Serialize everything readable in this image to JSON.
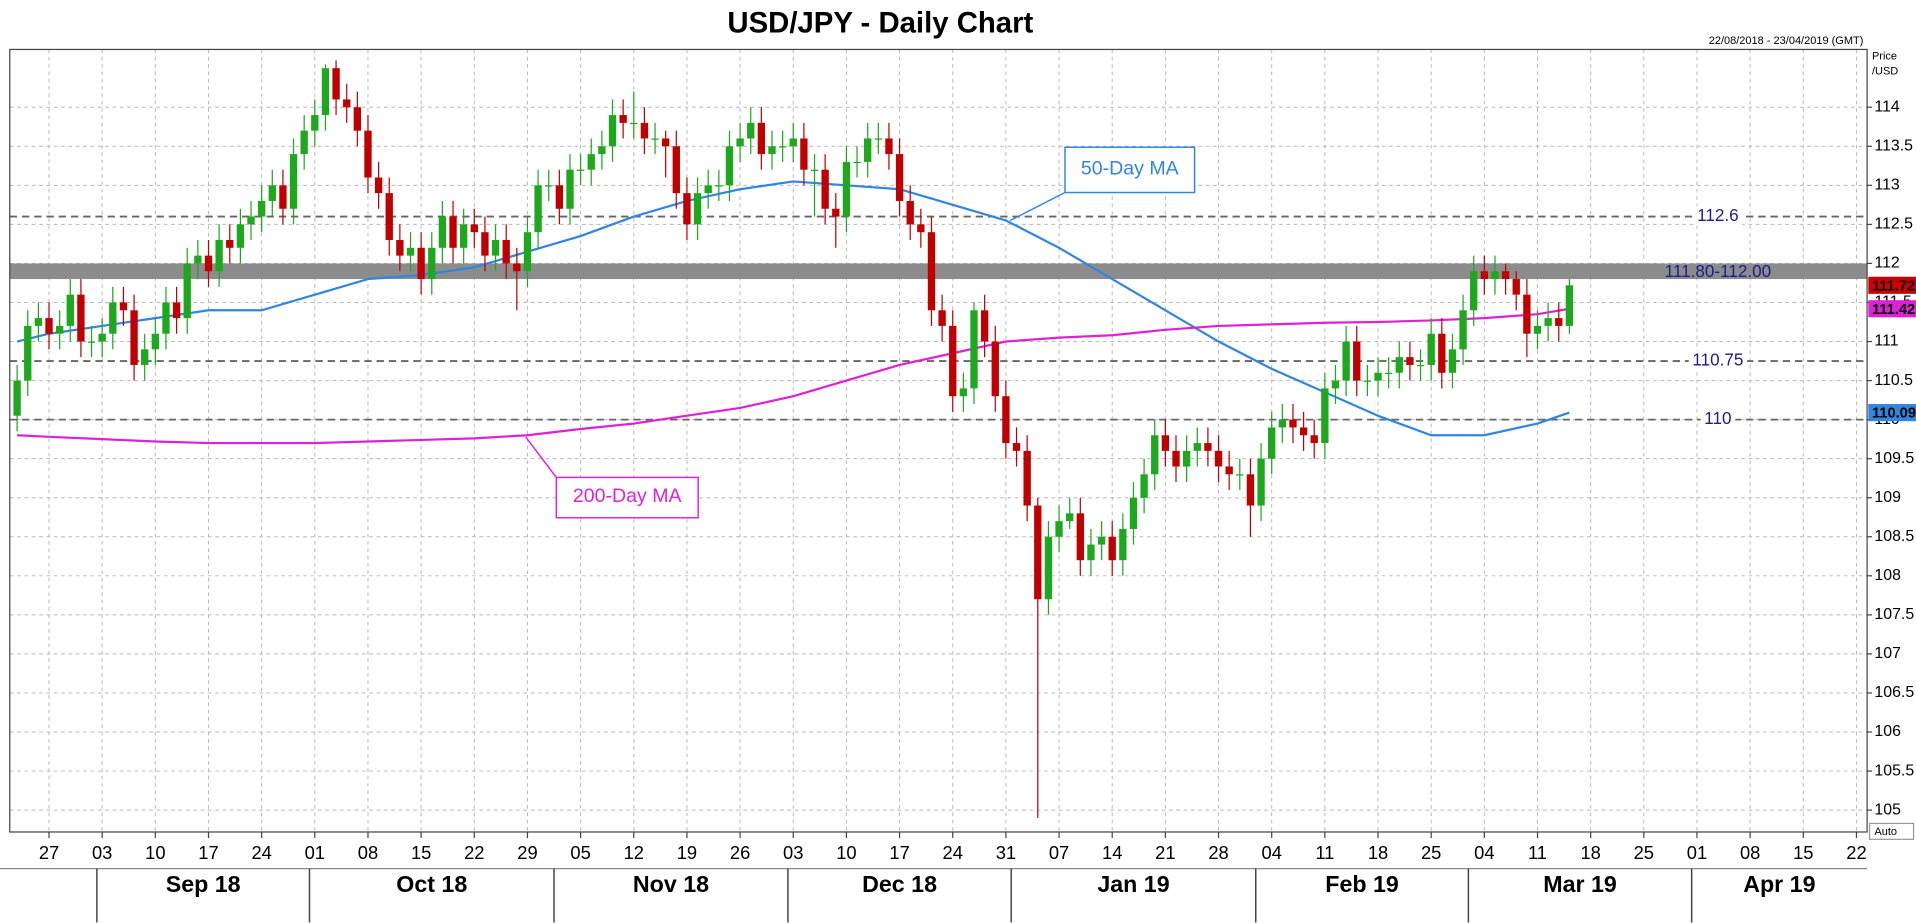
{
  "chart_data": {
    "type": "candlestick",
    "title": "USD/JPY - Daily Chart",
    "date_range": "22/08/2018 - 23/04/2019 (GMT)",
    "price_label": [
      "Price",
      "/USD"
    ],
    "auto_label": "Auto",
    "up_color": "#1ea81e",
    "down_color": "#c00000",
    "xlim": [
      "2018-08-22",
      "2019-04-23"
    ],
    "ylim": [
      104.72,
      114.74
    ],
    "yticks": [
      105,
      105.5,
      106,
      106.5,
      107,
      107.5,
      108,
      108.5,
      109,
      109.5,
      110,
      110.5,
      111,
      111.5,
      112,
      112.5,
      113,
      113.5,
      114
    ],
    "grid": true,
    "xticks": [
      {
        "value": "2018-08-27",
        "label": "27"
      },
      {
        "value": "2018-09-03",
        "label": "03"
      },
      {
        "value": "2018-09-10",
        "label": "10"
      },
      {
        "value": "2018-09-17",
        "label": "17"
      },
      {
        "value": "2018-09-24",
        "label": "24"
      },
      {
        "value": "2018-10-01",
        "label": "01"
      },
      {
        "value": "2018-10-08",
        "label": "08"
      },
      {
        "value": "2018-10-15",
        "label": "15"
      },
      {
        "value": "2018-10-22",
        "label": "22"
      },
      {
        "value": "2018-10-29",
        "label": "29"
      },
      {
        "value": "2018-11-05",
        "label": "05"
      },
      {
        "value": "2018-11-12",
        "label": "12"
      },
      {
        "value": "2018-11-19",
        "label": "19"
      },
      {
        "value": "2018-11-26",
        "label": "26"
      },
      {
        "value": "2018-12-03",
        "label": "03"
      },
      {
        "value": "2018-12-10",
        "label": "10"
      },
      {
        "value": "2018-12-17",
        "label": "17"
      },
      {
        "value": "2018-12-24",
        "label": "24"
      },
      {
        "value": "2018-12-31",
        "label": "31"
      },
      {
        "value": "2019-01-07",
        "label": "07"
      },
      {
        "value": "2019-01-14",
        "label": "14"
      },
      {
        "value": "2019-01-21",
        "label": "21"
      },
      {
        "value": "2019-01-28",
        "label": "28"
      },
      {
        "value": "2019-02-04",
        "label": "04"
      },
      {
        "value": "2019-02-11",
        "label": "11"
      },
      {
        "value": "2019-02-18",
        "label": "18"
      },
      {
        "value": "2019-02-25",
        "label": "25"
      },
      {
        "value": "2019-03-04",
        "label": "04"
      },
      {
        "value": "2019-03-11",
        "label": "11"
      },
      {
        "value": "2019-03-18",
        "label": "18"
      },
      {
        "value": "2019-03-25",
        "label": "25"
      },
      {
        "value": "2019-04-01",
        "label": "01"
      },
      {
        "value": "2019-04-08",
        "label": "08"
      },
      {
        "value": "2019-04-15",
        "label": "15"
      },
      {
        "value": "2019-04-22",
        "label": "22"
      }
    ],
    "months": [
      {
        "value": "2018-09",
        "label": "Sep 18"
      },
      {
        "value": "2018-10",
        "label": "Oct 18"
      },
      {
        "value": "2018-11",
        "label": "Nov 18"
      },
      {
        "value": "2018-12",
        "label": "Dec 18"
      },
      {
        "value": "2019-01",
        "label": "Jan 19"
      },
      {
        "value": "2019-02",
        "label": "Feb 19"
      },
      {
        "value": "2019-03",
        "label": "Mar 19"
      },
      {
        "value": "2019-04",
        "label": "Apr 19"
      }
    ],
    "x": [
      "2018-08-22",
      "2018-08-23",
      "2018-08-24",
      "2018-08-27",
      "2018-08-28",
      "2018-08-29",
      "2018-08-30",
      "2018-08-31",
      "2018-09-03",
      "2018-09-04",
      "2018-09-05",
      "2018-09-06",
      "2018-09-07",
      "2018-09-10",
      "2018-09-11",
      "2018-09-12",
      "2018-09-13",
      "2018-09-14",
      "2018-09-17",
      "2018-09-18",
      "2018-09-19",
      "2018-09-20",
      "2018-09-21",
      "2018-09-24",
      "2018-09-25",
      "2018-09-26",
      "2018-09-27",
      "2018-09-28",
      "2018-10-01",
      "2018-10-02",
      "2018-10-03",
      "2018-10-04",
      "2018-10-05",
      "2018-10-08",
      "2018-10-09",
      "2018-10-10",
      "2018-10-11",
      "2018-10-12",
      "2018-10-15",
      "2018-10-16",
      "2018-10-17",
      "2018-10-18",
      "2018-10-19",
      "2018-10-22",
      "2018-10-23",
      "2018-10-24",
      "2018-10-25",
      "2018-10-26",
      "2018-10-29",
      "2018-10-30",
      "2018-10-31",
      "2018-11-01",
      "2018-11-02",
      "2018-11-05",
      "2018-11-06",
      "2018-11-07",
      "2018-11-08",
      "2018-11-09",
      "2018-11-12",
      "2018-11-13",
      "2018-11-14",
      "2018-11-15",
      "2018-11-16",
      "2018-11-19",
      "2018-11-20",
      "2018-11-21",
      "2018-11-22",
      "2018-11-23",
      "2018-11-26",
      "2018-11-27",
      "2018-11-28",
      "2018-11-29",
      "2018-11-30",
      "2018-12-03",
      "2018-12-04",
      "2018-12-05",
      "2018-12-06",
      "2018-12-07",
      "2018-12-10",
      "2018-12-11",
      "2018-12-12",
      "2018-12-13",
      "2018-12-14",
      "2018-12-17",
      "2018-12-18",
      "2018-12-19",
      "2018-12-20",
      "2018-12-21",
      "2018-12-24",
      "2018-12-25",
      "2018-12-26",
      "2018-12-27",
      "2018-12-28",
      "2018-12-31",
      "2019-01-01",
      "2019-01-02",
      "2019-01-03",
      "2019-01-04",
      "2019-01-07",
      "2019-01-08",
      "2019-01-09",
      "2019-01-10",
      "2019-01-11",
      "2019-01-14",
      "2019-01-15",
      "2019-01-16",
      "2019-01-17",
      "2019-01-18",
      "2019-01-21",
      "2019-01-22",
      "2019-01-23",
      "2019-01-24",
      "2019-01-25",
      "2019-01-28",
      "2019-01-29",
      "2019-01-30",
      "2019-01-31",
      "2019-02-01",
      "2019-02-04",
      "2019-02-05",
      "2019-02-06",
      "2019-02-07",
      "2019-02-08",
      "2019-02-11",
      "2019-02-12",
      "2019-02-13",
      "2019-02-14",
      "2019-02-15",
      "2019-02-18",
      "2019-02-19",
      "2019-02-20",
      "2019-02-21",
      "2019-02-22",
      "2019-02-25",
      "2019-02-26",
      "2019-02-27",
      "2019-02-28",
      "2019-03-01",
      "2019-03-04",
      "2019-03-05",
      "2019-03-06",
      "2019-03-07",
      "2019-03-08",
      "2019-03-11",
      "2019-03-12",
      "2019-03-13",
      "2019-03-14"
    ],
    "open": [
      110.05,
      110.5,
      111.2,
      111.3,
      111.1,
      111.2,
      111.6,
      111.0,
      111.0,
      111.1,
      111.5,
      111.4,
      110.7,
      110.9,
      111.1,
      111.5,
      111.3,
      112.0,
      112.1,
      111.9,
      112.3,
      112.2,
      112.5,
      112.6,
      112.8,
      113.0,
      112.7,
      113.4,
      113.7,
      113.9,
      114.5,
      114.1,
      114.0,
      113.7,
      113.1,
      112.9,
      112.3,
      112.1,
      112.2,
      111.8,
      112.2,
      112.6,
      112.2,
      112.5,
      112.4,
      112.1,
      112.3,
      112.0,
      111.9,
      112.4,
      113.0,
      113.0,
      112.7,
      113.2,
      113.2,
      113.4,
      113.5,
      113.9,
      113.8,
      113.8,
      113.6,
      113.6,
      113.5,
      112.9,
      112.5,
      112.9,
      113.0,
      113.0,
      113.5,
      113.6,
      113.8,
      113.4,
      113.5,
      113.5,
      113.6,
      113.2,
      113.2,
      112.7,
      112.6,
      113.3,
      113.3,
      113.6,
      113.6,
      113.4,
      112.8,
      112.5,
      112.4,
      111.4,
      111.2,
      110.3,
      110.4,
      111.4,
      111.0,
      110.3,
      109.7,
      109.6,
      108.9,
      107.7,
      108.5,
      108.7,
      108.8,
      108.2,
      108.4,
      108.5,
      108.2,
      108.6,
      109.0,
      109.3,
      109.8,
      109.6,
      109.4,
      109.6,
      109.7,
      109.6,
      109.4,
      109.3,
      109.3,
      108.9,
      109.5,
      109.9,
      110.0,
      109.9,
      109.8,
      109.7,
      110.4,
      110.5,
      111.0,
      110.5,
      110.5,
      110.6,
      110.6,
      110.8,
      110.7,
      110.7,
      111.1,
      110.6,
      110.9,
      111.4,
      111.9,
      111.8,
      111.9,
      111.8,
      111.6,
      111.1,
      111.2,
      111.3,
      111.2
    ],
    "high": [
      110.7,
      111.4,
      111.5,
      111.5,
      111.4,
      111.8,
      111.8,
      111.2,
      111.3,
      111.7,
      111.7,
      111.6,
      111.1,
      111.3,
      111.7,
      111.7,
      112.2,
      112.3,
      112.3,
      112.5,
      112.5,
      112.7,
      112.8,
      113.0,
      113.2,
      113.2,
      113.6,
      113.9,
      114.1,
      114.55,
      114.6,
      114.3,
      114.2,
      113.9,
      113.3,
      113.1,
      112.5,
      112.4,
      112.4,
      112.4,
      112.8,
      112.8,
      112.7,
      112.7,
      112.6,
      112.5,
      112.5,
      112.2,
      112.6,
      113.2,
      113.2,
      113.2,
      113.4,
      113.4,
      113.6,
      113.7,
      114.1,
      114.1,
      114.2,
      114.0,
      113.8,
      113.7,
      113.7,
      113.1,
      113.1,
      113.2,
      113.2,
      113.7,
      113.8,
      114.0,
      114.0,
      113.7,
      113.7,
      113.8,
      113.8,
      113.4,
      113.4,
      112.9,
      113.5,
      113.5,
      113.8,
      113.8,
      113.8,
      113.6,
      113.0,
      112.7,
      112.6,
      111.6,
      111.4,
      110.6,
      111.5,
      111.6,
      111.2,
      110.5,
      109.9,
      109.8,
      109.0,
      108.7,
      108.9,
      109.0,
      109.0,
      108.6,
      108.7,
      108.7,
      108.8,
      109.2,
      109.5,
      110.0,
      110.0,
      109.8,
      109.8,
      109.9,
      109.9,
      109.8,
      109.6,
      109.5,
      109.5,
      109.7,
      110.1,
      110.2,
      110.2,
      110.1,
      110.0,
      110.6,
      110.7,
      111.2,
      111.2,
      110.7,
      110.8,
      110.8,
      111.0,
      111.0,
      110.9,
      111.3,
      111.3,
      111.1,
      111.6,
      112.1,
      112.1,
      112.1,
      112.0,
      111.9,
      111.8,
      111.4,
      111.5,
      111.5,
      111.8
    ],
    "low": [
      109.85,
      110.3,
      111.0,
      110.9,
      110.9,
      111.0,
      110.8,
      110.8,
      110.8,
      110.9,
      111.2,
      110.5,
      110.5,
      110.7,
      110.9,
      111.1,
      111.1,
      111.8,
      111.7,
      111.7,
      112.0,
      112.0,
      112.3,
      112.4,
      112.6,
      112.5,
      112.5,
      113.2,
      113.5,
      113.7,
      113.9,
      113.8,
      113.5,
      112.9,
      112.7,
      112.1,
      111.9,
      111.9,
      111.6,
      111.6,
      112.0,
      112.0,
      112.0,
      112.2,
      111.9,
      111.9,
      111.8,
      111.4,
      111.7,
      112.2,
      112.8,
      112.5,
      112.5,
      113.0,
      113.0,
      113.2,
      113.3,
      113.6,
      113.6,
      113.4,
      113.4,
      113.1,
      112.7,
      112.3,
      112.3,
      112.7,
      112.8,
      112.8,
      113.3,
      113.4,
      113.2,
      113.2,
      113.3,
      113.3,
      113.0,
      112.6,
      112.5,
      112.2,
      112.4,
      113.1,
      113.1,
      113.4,
      113.2,
      112.6,
      112.3,
      112.2,
      111.2,
      111.0,
      110.1,
      110.1,
      110.2,
      110.8,
      110.1,
      109.5,
      109.4,
      108.7,
      104.9,
      107.5,
      108.3,
      108.6,
      108.0,
      108.0,
      108.2,
      108.0,
      108.0,
      108.4,
      108.8,
      109.1,
      109.4,
      109.2,
      109.2,
      109.4,
      109.4,
      109.2,
      109.1,
      109.1,
      108.5,
      108.7,
      109.3,
      109.7,
      109.7,
      109.6,
      109.5,
      109.5,
      110.2,
      110.3,
      110.3,
      110.3,
      110.3,
      110.4,
      110.4,
      110.5,
      110.5,
      110.5,
      110.4,
      110.4,
      110.7,
      111.2,
      111.6,
      111.6,
      111.6,
      111.4,
      110.8,
      110.9,
      111.0,
      111.0,
      111.1
    ],
    "close": [
      110.5,
      111.2,
      111.3,
      111.1,
      111.2,
      111.6,
      111.0,
      111.0,
      111.1,
      111.5,
      111.4,
      110.7,
      110.9,
      111.1,
      111.5,
      111.3,
      112.0,
      112.1,
      111.9,
      112.3,
      112.2,
      112.5,
      112.6,
      112.8,
      113.0,
      112.7,
      113.4,
      113.7,
      113.9,
      114.5,
      114.1,
      114.0,
      113.7,
      113.1,
      112.9,
      112.3,
      112.1,
      112.2,
      111.8,
      112.2,
      112.6,
      112.2,
      112.5,
      112.4,
      112.1,
      112.3,
      112.0,
      111.9,
      112.4,
      113.0,
      113.0,
      112.7,
      113.2,
      113.2,
      113.4,
      113.5,
      113.9,
      113.8,
      113.8,
      113.6,
      113.6,
      113.5,
      112.9,
      112.5,
      112.9,
      113.0,
      113.0,
      113.5,
      113.6,
      113.8,
      113.4,
      113.5,
      113.5,
      113.6,
      113.2,
      113.2,
      112.7,
      112.6,
      113.3,
      113.3,
      113.6,
      113.6,
      113.4,
      112.8,
      112.5,
      112.4,
      111.4,
      111.2,
      110.3,
      110.4,
      111.4,
      111.0,
      110.3,
      109.7,
      109.6,
      108.9,
      107.7,
      108.5,
      108.7,
      108.8,
      108.2,
      108.4,
      108.5,
      108.2,
      108.6,
      109.0,
      109.3,
      109.8,
      109.6,
      109.4,
      109.6,
      109.7,
      109.6,
      109.4,
      109.3,
      109.3,
      108.9,
      109.5,
      109.9,
      110.0,
      109.9,
      109.8,
      109.7,
      110.4,
      110.5,
      111.0,
      110.5,
      110.5,
      110.6,
      110.6,
      110.8,
      110.7,
      110.7,
      111.1,
      110.6,
      110.9,
      111.4,
      111.9,
      111.8,
      111.9,
      111.8,
      111.6,
      111.1,
      111.2,
      111.3,
      111.2,
      111.72
    ],
    "lines": [
      {
        "name": "50-Day MA",
        "color": "#2f86e0",
        "x": [
          "2018-08-22",
          "2018-08-27",
          "2018-09-03",
          "2018-09-10",
          "2018-09-17",
          "2018-09-24",
          "2018-10-01",
          "2018-10-08",
          "2018-10-15",
          "2018-10-22",
          "2018-10-29",
          "2018-11-05",
          "2018-11-12",
          "2018-11-19",
          "2018-11-26",
          "2018-12-03",
          "2018-12-10",
          "2018-12-17",
          "2018-12-24",
          "2018-12-31",
          "2019-01-07",
          "2019-01-14",
          "2019-01-21",
          "2019-01-28",
          "2019-02-04",
          "2019-02-11",
          "2019-02-18",
          "2019-02-25",
          "2019-03-04",
          "2019-03-11",
          "2019-03-14"
        ],
        "values": [
          111.0,
          111.1,
          111.2,
          111.3,
          111.4,
          111.4,
          111.6,
          111.8,
          111.85,
          111.95,
          112.15,
          112.35,
          112.6,
          112.8,
          112.95,
          113.05,
          113.0,
          112.95,
          112.75,
          112.55,
          112.2,
          111.8,
          111.4,
          111.0,
          110.65,
          110.35,
          110.05,
          109.8,
          109.8,
          109.95,
          110.09
        ]
      },
      {
        "name": "200-Day MA",
        "color": "#e020d8",
        "x": [
          "2018-08-22",
          "2018-08-27",
          "2018-09-03",
          "2018-09-10",
          "2018-09-17",
          "2018-09-24",
          "2018-10-01",
          "2018-10-08",
          "2018-10-15",
          "2018-10-22",
          "2018-10-29",
          "2018-11-05",
          "2018-11-12",
          "2018-11-19",
          "2018-11-26",
          "2018-12-03",
          "2018-12-10",
          "2018-12-17",
          "2018-12-24",
          "2018-12-31",
          "2019-01-07",
          "2019-01-14",
          "2019-01-21",
          "2019-01-28",
          "2019-02-04",
          "2019-02-11",
          "2019-02-18",
          "2019-02-25",
          "2019-03-04",
          "2019-03-11",
          "2019-03-14"
        ],
        "values": [
          109.8,
          109.78,
          109.75,
          109.72,
          109.7,
          109.7,
          109.7,
          109.72,
          109.74,
          109.76,
          109.8,
          109.88,
          109.95,
          110.05,
          110.15,
          110.3,
          110.5,
          110.7,
          110.85,
          111.0,
          111.05,
          111.08,
          111.15,
          111.2,
          111.22,
          111.24,
          111.25,
          111.27,
          111.3,
          111.35,
          111.42
        ]
      }
    ],
    "levels": [
      112.6,
      110.75,
      110
    ],
    "band": {
      "low": 111.8,
      "high": 112.0,
      "label": "111.80-112.00"
    },
    "last_markers": [
      {
        "value": 111.72,
        "label": "111.72",
        "color": "#cc0000"
      },
      {
        "value": 111.42,
        "label": "111.42",
        "color": "#e020d8"
      },
      {
        "value": 110.09,
        "label": "110.09",
        "color": "#2f86e0"
      }
    ]
  }
}
